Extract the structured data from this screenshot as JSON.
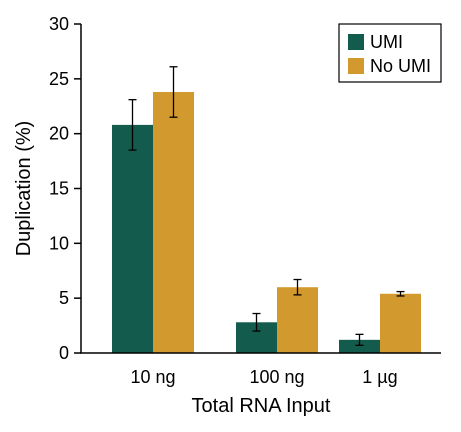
{
  "chart_data": {
    "type": "bar",
    "categories": [
      "10 ng",
      "100 ng",
      "1 µg"
    ],
    "series": [
      {
        "name": "UMI",
        "color": "#135b4c",
        "values": [
          20.8,
          2.8,
          1.2
        ],
        "error": [
          2.3,
          0.8,
          0.5
        ]
      },
      {
        "name": "No UMI",
        "color": "#d29a2e",
        "values": [
          23.8,
          6.0,
          5.4
        ],
        "error": [
          2.3,
          0.7,
          0.2
        ]
      }
    ],
    "xlabel": "Total RNA Input",
    "ylabel": "Duplication (%)",
    "ylim": [
      0,
      30
    ],
    "yticks": [
      "0",
      "5",
      "10",
      "15",
      "20",
      "25",
      "30"
    ],
    "legend_position": "top-right",
    "grid": false
  }
}
